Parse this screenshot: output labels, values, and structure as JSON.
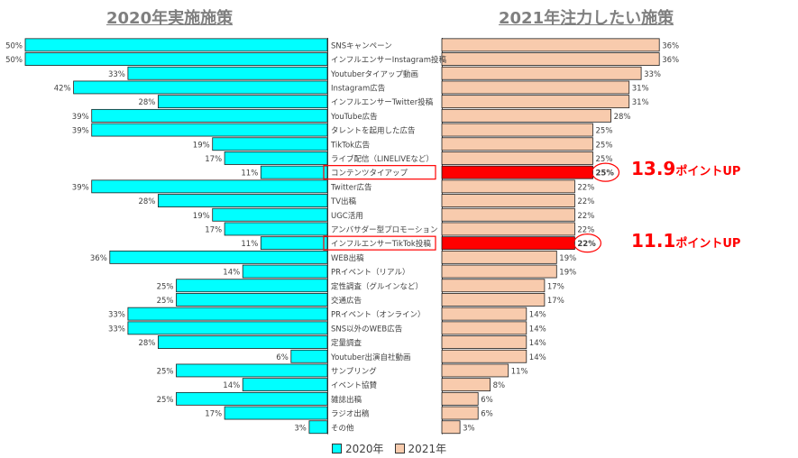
{
  "titles": {
    "left": "2020年実施施策",
    "right": "2021年注力したい施策"
  },
  "legend": {
    "item_2020": "2020年",
    "item_2021": "2021年"
  },
  "callouts": [
    {
      "number": "13.9",
      "unit": "ポイントUP"
    },
    {
      "number": "11.1",
      "unit": "ポイントUP"
    }
  ],
  "colors": {
    "bar_2020": "#00ffff",
    "bar_2021": "#f8cbad",
    "highlight": "#ff0000",
    "title": "#7f7f7f"
  },
  "chart_data": {
    "type": "bar",
    "orientation": "horizontal-butterfly",
    "categories": [
      "SNSキャンペーン",
      "インフルエンサーInstagram投稿",
      "Youtuberタイアップ動画",
      "Instagram広告",
      "インフルエンサーTwitter投稿",
      "YouTube広告",
      "タレントを起用した広告",
      "TikTok広告",
      "ライブ配信（LINELIVEなど）",
      "コンテンツタイアップ",
      "Twitter広告",
      "TV出稿",
      "UGC活用",
      "アンバサダー型プロモーション",
      "インフルエンサーTikTok投稿",
      "WEB出稿",
      "PRイベント（リアル）",
      "定性調査（グルインなど）",
      "交通広告",
      "PRイベント（オンライン）",
      "SNS以外のWEB広告",
      "定量調査",
      "Youtuber出演自社動画",
      "サンプリング",
      "イベント協賛",
      "雑誌出稿",
      "ラジオ出稿",
      "その他"
    ],
    "series": [
      {
        "name": "2020年",
        "values": [
          50,
          50,
          33,
          42,
          28,
          39,
          39,
          19,
          17,
          11,
          39,
          28,
          19,
          17,
          11,
          36,
          14,
          25,
          25,
          33,
          33,
          28,
          6,
          25,
          14,
          25,
          17,
          3
        ]
      },
      {
        "name": "2021年",
        "values": [
          36,
          36,
          33,
          31,
          31,
          28,
          25,
          25,
          25,
          25,
          22,
          22,
          22,
          22,
          22,
          19,
          19,
          17,
          17,
          14,
          14,
          14,
          14,
          11,
          8,
          6,
          6,
          3
        ]
      }
    ],
    "value_suffix": "%",
    "highlighted_categories": [
      "コンテンツタイアップ",
      "インフルエンサーTikTok投稿"
    ],
    "grid": false,
    "legend_position": "bottom-center"
  }
}
